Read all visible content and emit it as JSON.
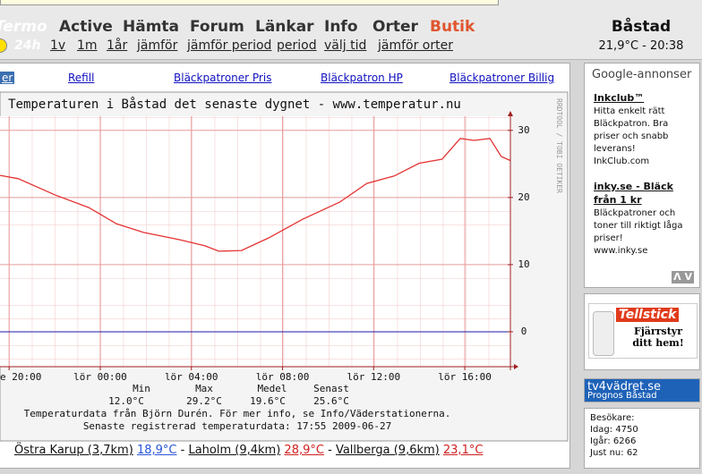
{
  "header": {
    "logo": "Termo",
    "period_current": "24h",
    "nav": [
      "Active",
      "Hämta",
      "Forum",
      "Länkar",
      "Info",
      "Orter",
      "Butik"
    ],
    "subnav": [
      "1v",
      "1m",
      "1år",
      "jämför",
      "jämför period",
      "period",
      "välj tid",
      "jämför orter"
    ],
    "city": "Båstad",
    "current": "21,9°C - 20:38"
  },
  "ad_links": [
    "er",
    "Refill",
    "Bläckpatroner Pris",
    "Bläckpatron HP",
    "Bläckpatroner Billig"
  ],
  "chart_data": {
    "type": "line",
    "title": "Temperaturen i Båstad det senaste dygnet - www.temperatur.nu",
    "watermark": "RRDTOOL / TOBI OETIKER",
    "x": [
      -0.4,
      0.4,
      2,
      3.5,
      4.7,
      5.9,
      7.5,
      8.6,
      9.2,
      10.2,
      11.4,
      12.9,
      14.5,
      15.7,
      16.9,
      18,
      19,
      19.8,
      20.4,
      21.1,
      21.6,
      22
    ],
    "values": [
      23.3,
      22.8,
      20.4,
      18.5,
      16.1,
      14.8,
      13.7,
      12.8,
      12.0,
      12.1,
      14.0,
      16.8,
      19.3,
      22.1,
      23.2,
      25.1,
      25.7,
      28.8,
      28.5,
      28.8,
      26.1,
      25.5
    ],
    "color": "#e43232",
    "xlim": [
      -0.4,
      22
    ],
    "ylim": [
      -5.2,
      32.1
    ],
    "xticks": [
      {
        "value": 0,
        "label": "e 20:00"
      },
      {
        "value": 4,
        "label": "lör 00:00"
      },
      {
        "value": 8,
        "label": "lör 04:00"
      },
      {
        "value": 12,
        "label": "lör 08:00"
      },
      {
        "value": 16,
        "label": "lör 12:00"
      },
      {
        "value": 20,
        "label": "lör 16:00"
      }
    ],
    "yticks": [
      0,
      10,
      20,
      30
    ],
    "grid": true,
    "zero_line_color": "#1a1aa8"
  },
  "stats": {
    "headers": [
      "Min",
      "Max",
      "Medel",
      "Senast"
    ],
    "values": [
      "12.0°C",
      "29.2°C",
      "19.6°C",
      "25.6°C"
    ],
    "source": "Temperaturdata från Björn Durén. För mer info, se Info/Väderstationerna.",
    "latest": "Senaste registrerad temperaturdata: 17:55 2009-06-27"
  },
  "nearby": {
    "separator": "-",
    "stations": [
      {
        "name": "Östra Karup (3,7km)",
        "temp": "18,9°C"
      },
      {
        "name": "Laholm (9,4km)",
        "temp": "28,9°C"
      },
      {
        "name": "Vallberga (9,6km)",
        "temp": "23,1°C"
      }
    ]
  },
  "sidebar": {
    "google": "Google-annonser",
    "ads": [
      {
        "title": "Inkclub™",
        "lines": [
          "Hitta enkelt rätt",
          "Bläckpatron. Bra",
          "priser och snabb",
          "leverans!"
        ],
        "url": "InkClub.com"
      },
      {
        "title": "inky.se - Bläck från 1 kr",
        "lines": [
          "Bläckpatroner och",
          "toner till riktigt låga",
          "priser!"
        ],
        "url": "www.inky.se"
      }
    ],
    "arrows": "Λ V",
    "tellstick": {
      "brand": "Tellstick",
      "text": "Fjärrstyr ditt hem!"
    },
    "tv4": {
      "brand": "tv4vädret.se",
      "text": "Prognos Båstad"
    },
    "visitors": {
      "title": "Besökare:",
      "lines": [
        "Idag: 4750",
        "Igår: 6266",
        "Just nu: 62"
      ]
    }
  }
}
